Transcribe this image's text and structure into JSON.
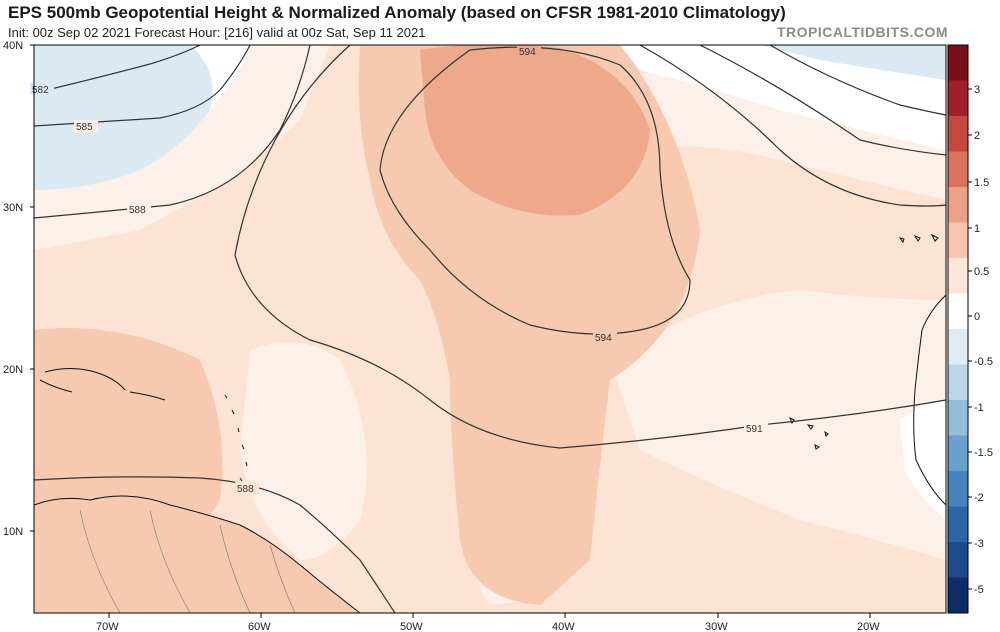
{
  "header": {
    "title": "EPS 500mb Geopotential Height & Normalized Anomaly (based on CFSR 1981-2010 Climatology)",
    "subtitle": "Init: 00z Sep 02 2021   Forecast Hour: [216]   valid at 00z Sat, Sep 11 2021",
    "brand": "TROPICALTIDBITS.COM"
  },
  "map": {
    "lat_labels": [
      "40N",
      "30N",
      "20N",
      "10N"
    ],
    "lon_labels": [
      "70W",
      "60W",
      "50W",
      "40W",
      "30W",
      "20W"
    ],
    "contour_labels": [
      "582",
      "585",
      "588",
      "594",
      "594",
      "591",
      "588"
    ]
  },
  "colorbar": {
    "labels": [
      "3",
      "2",
      "1.5",
      "1",
      "0.5",
      "0",
      "-0.5",
      "-1",
      "-1.5",
      "-2",
      "-3",
      "-5"
    ],
    "colors": [
      "#7a0f1c",
      "#a31f28",
      "#c5483f",
      "#d9735c",
      "#eca085",
      "#f6c7ae",
      "#fce6da",
      "#ffffff",
      "#dfeaf3",
      "#bcd5e8",
      "#93bcdb",
      "#6aa1cc",
      "#4784bd",
      "#2d66a8",
      "#1d4a8c",
      "#0f2c66"
    ]
  }
}
